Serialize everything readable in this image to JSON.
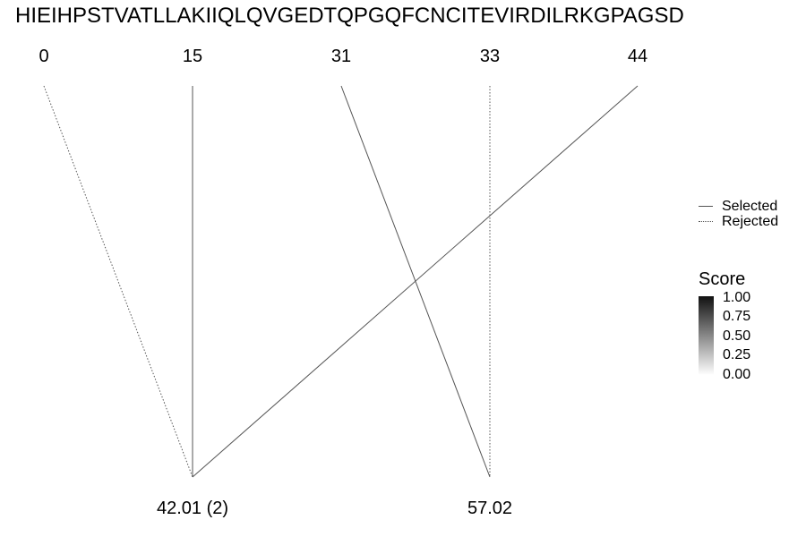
{
  "sequence": "HIEIHPSTVATLLAKIIQLQVGEDTQPGQFCNCITEVIRDILRKGPAGSD",
  "positions": [
    "0",
    "15",
    "31",
    "33",
    "44"
  ],
  "masses": [
    "42.01 (2)",
    "57.02"
  ],
  "connections": [
    {
      "from": "0",
      "to": "42.01 (2)",
      "status": "rejected"
    },
    {
      "from": "15",
      "to": "42.01 (2)",
      "status": "selected"
    },
    {
      "from": "44",
      "to": "42.01 (2)",
      "status": "selected"
    },
    {
      "from": "31",
      "to": "57.02",
      "status": "selected"
    },
    {
      "from": "33",
      "to": "57.02",
      "status": "rejected"
    }
  ],
  "legend": {
    "selected_label": "Selected",
    "rejected_label": "Rejected"
  },
  "score_scale": {
    "title": "Score",
    "ticks": [
      "1.00",
      "0.75",
      "0.50",
      "0.25",
      "0.00"
    ],
    "color_high": "#111111",
    "color_low": "#ffffff"
  },
  "line_color": "#555555"
}
